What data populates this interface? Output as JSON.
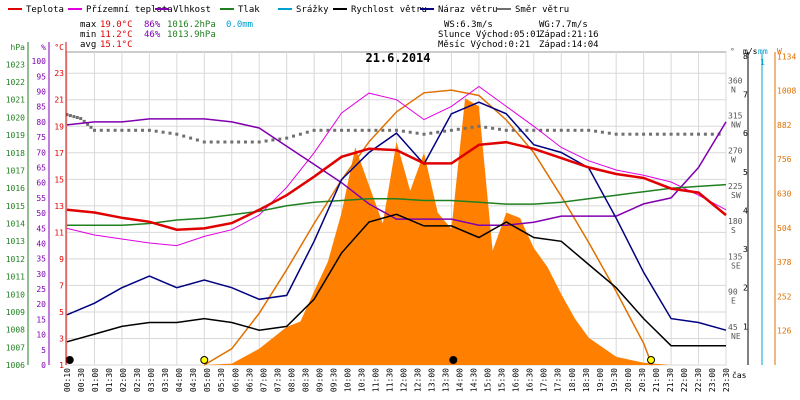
{
  "legend": [
    {
      "label": "Teplota",
      "color": "#e00000"
    },
    {
      "label": "Přízemní teplota",
      "color": "#e000e0"
    },
    {
      "label": "Vlhkost",
      "color": "#8000b0"
    },
    {
      "label": "Tlak",
      "color": "#208020"
    },
    {
      "label": "Srážky",
      "color": "#00a0d0"
    },
    {
      "label": "Rychlost větru",
      "color": "#000000"
    },
    {
      "label": "Náraz větru",
      "color": "#000080"
    },
    {
      "label": "Směr větru",
      "color": "#707070"
    }
  ],
  "stats": {
    "max_label": "max",
    "max_temp": "19.0°C",
    "max_hum": "86%",
    "max_press": "1016.2hPa",
    "max_rain": "0.0mm",
    "min_label": "min",
    "min_temp": "11.2°C",
    "min_hum": "46%",
    "min_press": "1013.9hPa",
    "avg_label": "avg",
    "avg_temp": "15.1°C",
    "ws": "WS:6.3m/s",
    "wg": "WG:7.7m/s",
    "sun": "Slunce Východ:05:01",
    "sun_set": "Západ:21:16",
    "moon": "Měsíc  Východ:0:21",
    "moon_set": "Západ:14:04"
  },
  "chart_data": {
    "type": "line",
    "title": "21.6.2014",
    "xlabel": "čas",
    "x_ticks": [
      "00:10",
      "00:30",
      "01:00",
      "01:30",
      "02:00",
      "02:30",
      "03:00",
      "03:30",
      "04:00",
      "04:30",
      "05:00",
      "05:30",
      "06:00",
      "06:30",
      "07:00",
      "07:30",
      "08:00",
      "08:30",
      "09:00",
      "09:30",
      "10:00",
      "10:30",
      "11:00",
      "11:30",
      "12:00",
      "12:30",
      "13:00",
      "13:30",
      "14:00",
      "14:30",
      "15:00",
      "15:30",
      "16:00",
      "16:30",
      "17:00",
      "17:30",
      "18:00",
      "18:30",
      "19:00",
      "19:30",
      "20:00",
      "20:30",
      "21:00",
      "21:30",
      "22:00",
      "22:30",
      "23:00",
      "23:30"
    ],
    "x_hours": [
      0,
      1,
      2,
      3,
      4,
      5,
      6,
      7,
      8,
      9,
      10,
      11,
      12,
      13,
      14,
      15,
      16,
      17,
      18,
      19,
      20,
      21,
      22,
      23,
      24
    ],
    "axes": {
      "hpa": {
        "label": "hPa",
        "ticks": [
          "1006",
          "1007",
          "1008",
          "1009",
          "1010",
          "1011",
          "1012",
          "1013",
          "1014",
          "1015",
          "1016",
          "1017",
          "1018",
          "1019",
          "1020",
          "1021",
          "1022",
          "1023"
        ],
        "range": [
          1006,
          1023.7
        ]
      },
      "humidity": {
        "label": "%",
        "ticks": [
          "0",
          "5",
          "10",
          "15",
          "20",
          "25",
          "30",
          "35",
          "40",
          "45",
          "50",
          "55",
          "60",
          "65",
          "70",
          "75",
          "80",
          "85",
          "90",
          "95",
          "100"
        ],
        "range": [
          0,
          103
        ]
      },
      "temp": {
        "label": "°C",
        "ticks": [
          "1",
          "3",
          "5",
          "7",
          "9",
          "11",
          "13",
          "15",
          "17",
          "19",
          "21",
          "23"
        ],
        "range": [
          1,
          24.6
        ]
      },
      "dir": {
        "label": "°",
        "ticks": [
          "0",
          "45",
          "90",
          "135",
          "180",
          "225",
          "270",
          "315",
          "360"
        ],
        "names": [
          "",
          "NE",
          "E",
          "SE",
          "S",
          "SW",
          "W",
          "NW",
          "N"
        ],
        "range": [
          0,
          400
        ]
      },
      "wind": {
        "label": "m/s",
        "ticks": [
          "1",
          "2",
          "3",
          "4",
          "5",
          "6",
          "7",
          "8"
        ],
        "range": [
          0,
          8.1
        ]
      },
      "rain": {
        "label": "mm",
        "ticks": [
          "1"
        ]
      },
      "solar": {
        "label": "W",
        "ticks": [
          "126",
          "252",
          "378",
          "504",
          "630",
          "756",
          "882",
          "1008",
          "1134"
        ],
        "range": [
          0,
          1150
        ]
      }
    },
    "series": [
      {
        "name": "Teplota",
        "color": "#e00000",
        "axis": "temp",
        "x": [
          0,
          1,
          2,
          3,
          4,
          5,
          6,
          7,
          8,
          9,
          10,
          11,
          12,
          13,
          14,
          15,
          16,
          17,
          18,
          19,
          20,
          21,
          22,
          23,
          24
        ],
        "values": [
          12.7,
          12.5,
          12.1,
          11.8,
          11.2,
          11.3,
          11.7,
          12.7,
          13.8,
          15.2,
          16.7,
          17.3,
          17.2,
          16.2,
          16.2,
          17.6,
          17.8,
          17.3,
          16.6,
          15.9,
          15.4,
          15.1,
          14.3,
          14.0,
          12.3
        ]
      },
      {
        "name": "Přízemní teplota",
        "color": "#e000e0",
        "axis": "temp",
        "x": [
          0,
          1,
          2,
          3,
          4,
          5,
          6,
          7,
          8,
          9,
          10,
          11,
          12,
          13,
          14,
          15,
          16,
          17,
          18,
          19,
          20,
          21,
          22,
          23,
          24
        ],
        "values": [
          11.3,
          10.8,
          10.5,
          10.2,
          10.0,
          10.7,
          11.2,
          12.3,
          14.4,
          17.0,
          20.0,
          21.5,
          21.0,
          19.5,
          20.5,
          22.0,
          20.5,
          19.0,
          17.4,
          16.4,
          15.7,
          15.3,
          14.8,
          13.8,
          12.7
        ]
      },
      {
        "name": "Vlhkost",
        "color": "#8000b0",
        "axis": "humidity",
        "x": [
          0,
          1,
          2,
          3,
          4,
          5,
          6,
          7,
          8,
          9,
          10,
          11,
          12,
          13,
          14,
          15,
          16,
          17,
          18,
          19,
          20,
          21,
          22,
          23,
          24
        ],
        "values": [
          79,
          80,
          80,
          81,
          81,
          81,
          80,
          78,
          72,
          66,
          60,
          53,
          48,
          48,
          48,
          46,
          46,
          47,
          49,
          49,
          49,
          53,
          55,
          65,
          80
        ]
      },
      {
        "name": "Tlak",
        "color": "#208020",
        "axis": "hpa",
        "x": [
          0,
          1,
          2,
          3,
          4,
          5,
          6,
          7,
          8,
          9,
          10,
          11,
          12,
          13,
          14,
          15,
          16,
          17,
          18,
          19,
          20,
          21,
          22,
          23,
          24
        ],
        "values": [
          1013.9,
          1013.9,
          1013.9,
          1014.0,
          1014.2,
          1014.3,
          1014.5,
          1014.7,
          1015.0,
          1015.2,
          1015.3,
          1015.4,
          1015.4,
          1015.3,
          1015.3,
          1015.2,
          1015.1,
          1015.1,
          1015.2,
          1015.4,
          1015.6,
          1015.8,
          1016.0,
          1016.1,
          1016.2
        ]
      },
      {
        "name": "Rychlost větru",
        "color": "#000000",
        "axis": "wind",
        "x": [
          0,
          1,
          2,
          3,
          4,
          5,
          6,
          7,
          8,
          9,
          10,
          11,
          12,
          13,
          14,
          15,
          16,
          17,
          18,
          19,
          20,
          21,
          22,
          23,
          24
        ],
        "values": [
          0.6,
          0.8,
          1.0,
          1.1,
          1.1,
          1.2,
          1.1,
          0.9,
          1.0,
          1.7,
          2.9,
          3.7,
          3.9,
          3.6,
          3.6,
          3.3,
          3.7,
          3.3,
          3.2,
          2.6,
          2.0,
          1.2,
          0.5,
          0.5,
          0.5
        ]
      },
      {
        "name": "Náraz větru",
        "color": "#000080",
        "axis": "wind",
        "x": [
          0,
          1,
          2,
          3,
          4,
          5,
          6,
          7,
          8,
          9,
          10,
          11,
          12,
          13,
          14,
          15,
          16,
          17,
          18,
          19,
          20,
          21,
          22,
          23,
          24
        ],
        "values": [
          1.3,
          1.6,
          2.0,
          2.3,
          2.0,
          2.2,
          2.0,
          1.7,
          1.8,
          3.2,
          4.8,
          5.5,
          6.0,
          5.2,
          6.5,
          6.8,
          6.5,
          5.7,
          5.5,
          5.1,
          3.8,
          2.4,
          1.2,
          1.1,
          0.9
        ]
      },
      {
        "name": "Směr větru",
        "color": "#707070",
        "axis": "dir",
        "x": [
          0,
          0.5,
          1,
          2,
          3,
          4,
          5,
          6,
          7,
          8,
          9,
          10,
          11,
          12,
          13,
          14,
          15,
          16,
          17,
          18,
          19,
          20,
          21,
          22,
          23,
          24
        ],
        "values": [
          320,
          315,
          300,
          300,
          300,
          295,
          285,
          285,
          285,
          290,
          300,
          300,
          300,
          300,
          295,
          300,
          305,
          300,
          300,
          300,
          300,
          295,
          295,
          295,
          295,
          295
        ]
      }
    ],
    "solar": {
      "name": "Solar radiation",
      "color": "#ff8000",
      "x": [
        0,
        5,
        6,
        7,
        8,
        8.5,
        9,
        9.5,
        10,
        10.5,
        11,
        11.5,
        12,
        12.5,
        13,
        13.5,
        14,
        14.5,
        15,
        15.5,
        16,
        16.5,
        17,
        17.5,
        18,
        18.5,
        19,
        20,
        21,
        22,
        24
      ],
      "values": [
        0,
        0,
        5,
        60,
        140,
        160,
        270,
        380,
        560,
        800,
        660,
        520,
        820,
        640,
        780,
        560,
        500,
        980,
        950,
        420,
        560,
        540,
        430,
        360,
        260,
        170,
        100,
        30,
        8,
        0,
        0
      ]
    },
    "solar_max": {
      "name": "Theoretical max",
      "color": "#e07000",
      "x": [
        5,
        6,
        7,
        8,
        9,
        10,
        11,
        12,
        13,
        14,
        15,
        16,
        17,
        18,
        19,
        20,
        21,
        21.3
      ],
      "values": [
        0,
        60,
        190,
        350,
        520,
        680,
        820,
        930,
        1000,
        1010,
        990,
        900,
        780,
        620,
        450,
        270,
        80,
        0
      ]
    },
    "markers": [
      {
        "x": 0.1,
        "type": "filled",
        "label": "moonrise"
      },
      {
        "x": 5.0,
        "type": "sun",
        "label": "sunrise"
      },
      {
        "x": 14.07,
        "type": "filled",
        "label": "moonset"
      },
      {
        "x": 21.27,
        "type": "sun",
        "label": "sunset"
      }
    ]
  }
}
